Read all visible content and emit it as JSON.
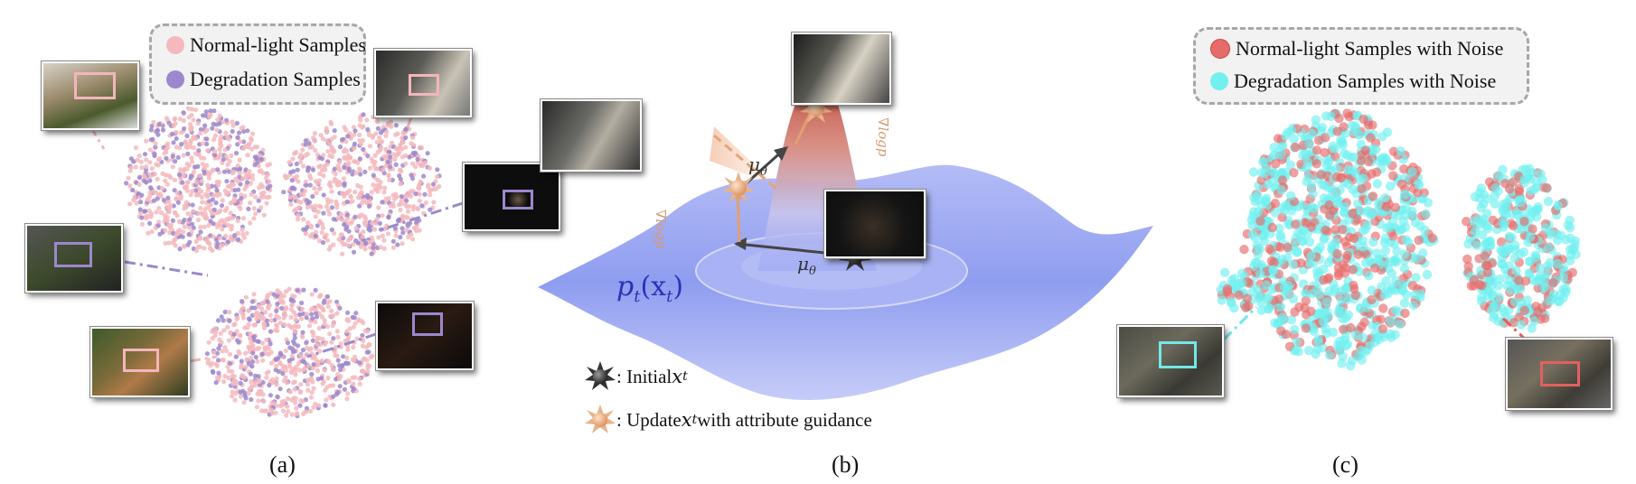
{
  "panel_a": {
    "legend": {
      "normal": {
        "label": "Normal-light Samples",
        "color": "#f4b8bd"
      },
      "degradation": {
        "label": "Degradation Samples",
        "color": "#9c88cc"
      }
    },
    "caption": "(a)"
  },
  "panel_b": {
    "density_label_p": "p",
    "density_label_sub": "t",
    "density_label_arg": "(x",
    "density_label_argsub": "t",
    "density_label_close": ")",
    "mu_label": "μ",
    "mu_sub": "θ",
    "grad_label_1": "∇logp",
    "grad_label_2": "∇logp",
    "key_initial_prefix": ": Initial ",
    "key_initial_var": "x",
    "key_initial_sub": "t",
    "key_update_prefix": ": Update ",
    "key_update_var": "x",
    "key_update_sub": "t",
    "key_update_suffix": " with attribute guidance",
    "surface_color": "#8f9df0",
    "peak_color": "#c9564a",
    "caption": "(b)"
  },
  "panel_c": {
    "legend": {
      "normal": {
        "label": "Normal-light Samples with Noise",
        "color": "#e66b6b"
      },
      "degradation": {
        "label": "Degradation Samples with Noise",
        "color": "#72f0f0"
      }
    },
    "caption": "(c)"
  }
}
